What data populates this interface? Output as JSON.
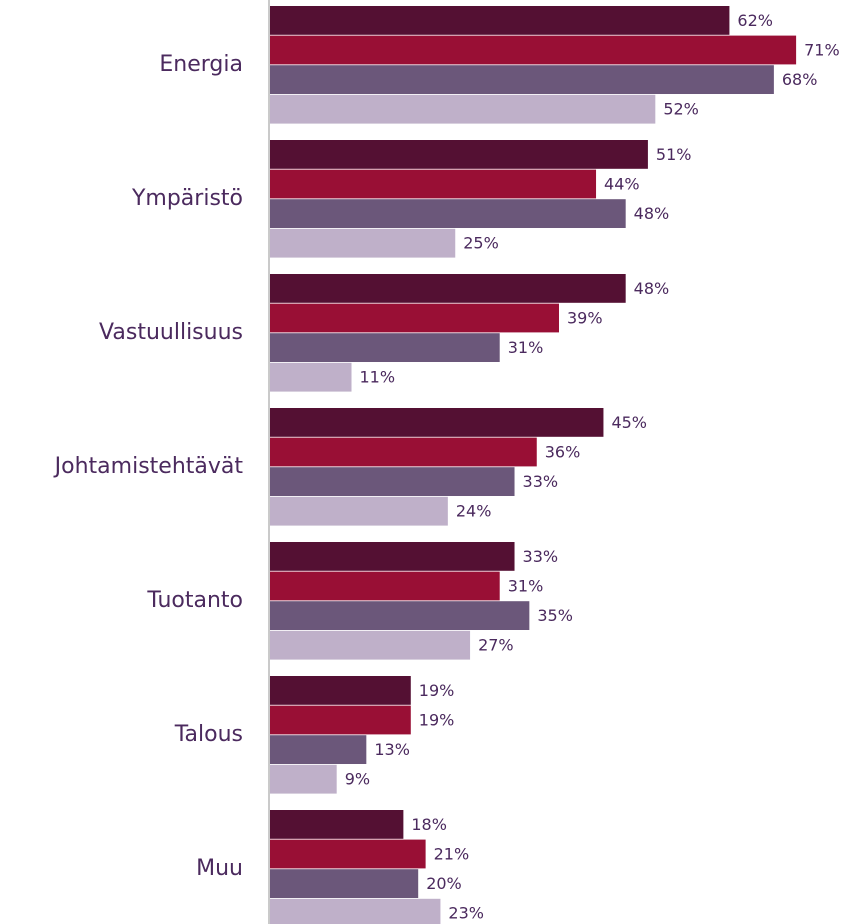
{
  "chart_data": {
    "type": "bar",
    "orientation": "horizontal",
    "categories": [
      "Energia",
      "Ympäristö",
      "Vastuullisuus",
      "Johtamistehtävät",
      "Tuotanto",
      "Talous",
      "Muu"
    ],
    "series": [
      {
        "color": "#541033",
        "values": [
          62,
          51,
          48,
          45,
          33,
          19,
          18
        ],
        "value_labels": [
          "62%",
          "51%",
          "48%",
          "45%",
          "33%",
          "19%",
          "18%"
        ]
      },
      {
        "color": "#990f35",
        "values": [
          71,
          44,
          39,
          36,
          31,
          19,
          21
        ],
        "value_labels": [
          "71%",
          "44%",
          "39%",
          "36%",
          "31%",
          "19%",
          "21%"
        ]
      },
      {
        "color": "#6b577a",
        "values": [
          68,
          48,
          31,
          33,
          35,
          13,
          20
        ],
        "value_labels": [
          "68%",
          "48%",
          "31%",
          "33%",
          "35%",
          "13%",
          "20%"
        ]
      },
      {
        "color": "#bfb0c9",
        "values": [
          52,
          25,
          11,
          24,
          27,
          9,
          23
        ],
        "value_labels": [
          "52%",
          "25%",
          "11%",
          "24%",
          "27%",
          "9%",
          "23%"
        ]
      }
    ],
    "xlim": [
      0,
      100
    ]
  }
}
